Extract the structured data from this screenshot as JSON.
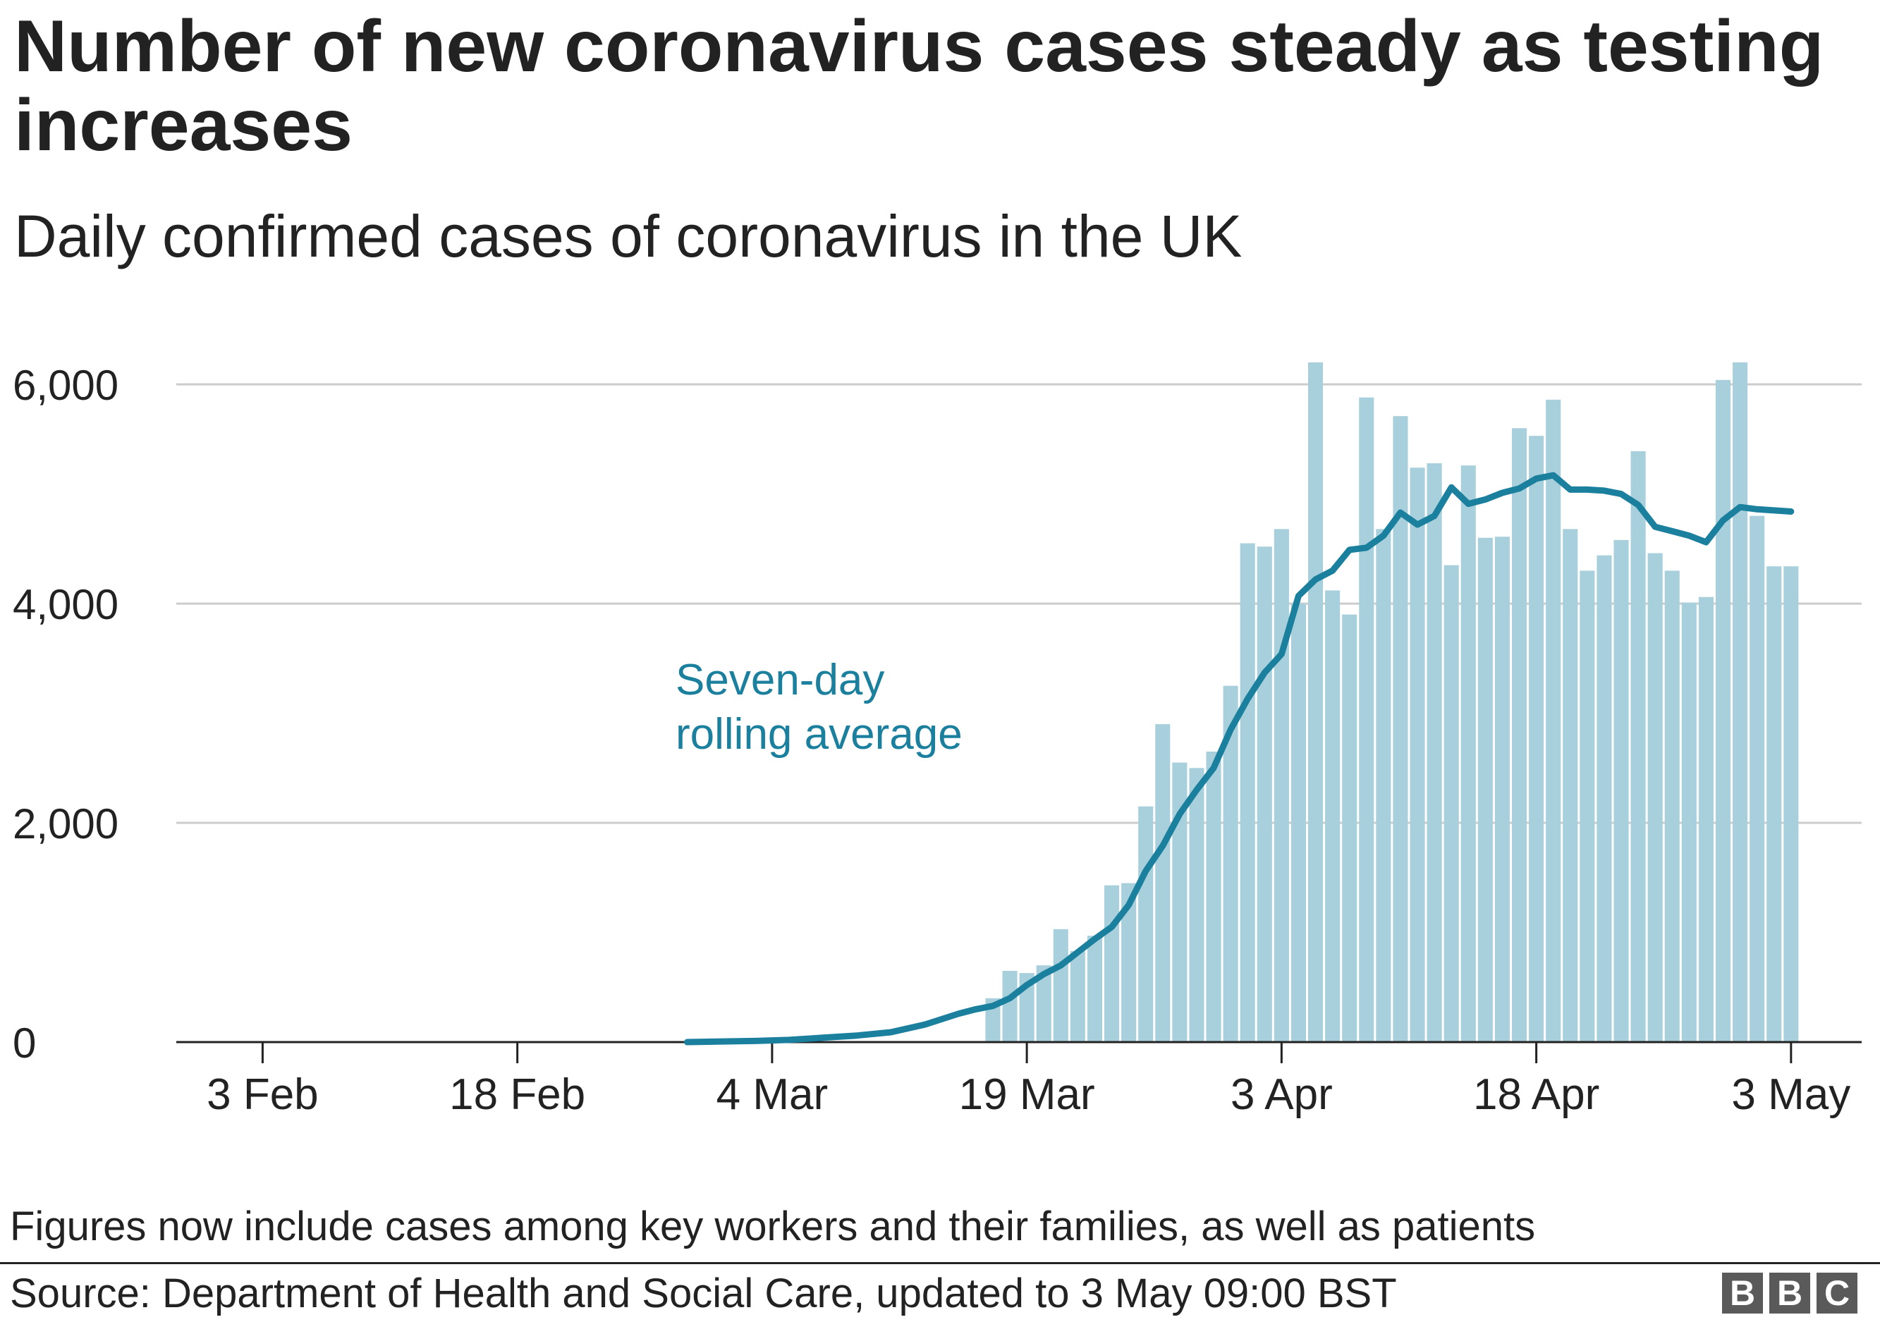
{
  "header": {
    "title": "Number of new coronavirus cases steady as testing increases",
    "subtitle": "Daily confirmed cases of coronavirus in the UK"
  },
  "footer": {
    "note": "Figures now include cases among key workers and their families, as well as patients",
    "source": "Source: Department of Health and Social Care, updated to 3 May 09:00 BST",
    "logo_letters": [
      "B",
      "B",
      "C"
    ]
  },
  "colors": {
    "bar": "#a8d0dc",
    "line": "#1b7f9e",
    "grid": "#cccccc",
    "axis": "#222222",
    "text": "#222222",
    "annotation": "#1b7f9e",
    "logo_bg": "#5a5a5a"
  },
  "chart_data": {
    "type": "bar",
    "x_axis_type": "date",
    "xlim": [
      "2020-01-29",
      "2020-05-05"
    ],
    "ylim": [
      0,
      6200
    ],
    "grid": true,
    "y_ticks": [
      0,
      2000,
      4000,
      6000
    ],
    "y_tick_labels": [
      "0",
      "2,000",
      "4,000",
      "6,000"
    ],
    "x_ticks": [
      "2020-02-03",
      "2020-02-18",
      "2020-03-04",
      "2020-03-19",
      "2020-04-03",
      "2020-04-18",
      "2020-05-03"
    ],
    "x_tick_labels": [
      "3 Feb",
      "18 Feb",
      "4 Mar",
      "19 Mar",
      "3 Apr",
      "18 Apr",
      "3 May"
    ],
    "annotation": {
      "lines": [
        "Seven-day",
        "rolling average"
      ],
      "color": "#1b7f9e"
    },
    "series": [
      {
        "type": "bar",
        "x": [
          "2020-03-17",
          "2020-03-18",
          "2020-03-19",
          "2020-03-20",
          "2020-03-21",
          "2020-03-22",
          "2020-03-23",
          "2020-03-24",
          "2020-03-25",
          "2020-03-26",
          "2020-03-27",
          "2020-03-28",
          "2020-03-29",
          "2020-03-30",
          "2020-03-31",
          "2020-04-01",
          "2020-04-02",
          "2020-04-03",
          "2020-04-04",
          "2020-04-05",
          "2020-04-06",
          "2020-04-07",
          "2020-04-08",
          "2020-04-09",
          "2020-04-10",
          "2020-04-11",
          "2020-04-12",
          "2020-04-13",
          "2020-04-14",
          "2020-04-15",
          "2020-04-16",
          "2020-04-17",
          "2020-04-18",
          "2020-04-19",
          "2020-04-20",
          "2020-04-21",
          "2020-04-22",
          "2020-04-23",
          "2020-04-24",
          "2020-04-25",
          "2020-04-26",
          "2020-04-27",
          "2020-04-28",
          "2020-04-29",
          "2020-04-30",
          "2020-05-01",
          "2020-05-02",
          "2020-05-03"
        ],
        "values": [
          400,
          650,
          630,
          700,
          1030,
          830,
          970,
          1430,
          1450,
          2150,
          2900,
          2550,
          2500,
          2650,
          3250,
          4550,
          4520,
          4680,
          4000,
          6200,
          4120,
          3900,
          5880,
          4680,
          5710,
          5240,
          5280,
          4350,
          5260,
          4600,
          4610,
          5600,
          5530,
          5860,
          4680,
          4300,
          4440,
          4580,
          5390,
          4460,
          4300,
          4010,
          4060,
          6040,
          6200,
          4800,
          4340,
          4340
        ]
      },
      {
        "type": "line",
        "x": [
          "2020-02-28",
          "2020-03-03",
          "2020-03-05",
          "2020-03-07",
          "2020-03-09",
          "2020-03-11",
          "2020-03-13",
          "2020-03-15",
          "2020-03-16",
          "2020-03-17",
          "2020-03-18",
          "2020-03-19",
          "2020-03-20",
          "2020-03-21",
          "2020-03-22",
          "2020-03-23",
          "2020-03-24",
          "2020-03-25",
          "2020-03-26",
          "2020-03-27",
          "2020-03-28",
          "2020-03-29",
          "2020-03-30",
          "2020-03-31",
          "2020-04-01",
          "2020-04-02",
          "2020-04-03",
          "2020-04-04",
          "2020-04-05",
          "2020-04-06",
          "2020-04-07",
          "2020-04-08",
          "2020-04-09",
          "2020-04-10",
          "2020-04-11",
          "2020-04-12",
          "2020-04-13",
          "2020-04-14",
          "2020-04-15",
          "2020-04-16",
          "2020-04-17",
          "2020-04-18",
          "2020-04-19",
          "2020-04-20",
          "2020-04-21",
          "2020-04-22",
          "2020-04-23",
          "2020-04-24",
          "2020-04-25",
          "2020-04-26",
          "2020-04-27",
          "2020-04-28",
          "2020-04-29",
          "2020-04-30",
          "2020-05-01",
          "2020-05-02",
          "2020-05-03"
        ],
        "values": [
          0,
          10,
          20,
          40,
          60,
          90,
          160,
          260,
          300,
          330,
          400,
          520,
          620,
          700,
          820,
          940,
          1050,
          1250,
          1560,
          1790,
          2080,
          2300,
          2500,
          2850,
          3130,
          3370,
          3540,
          4070,
          4220,
          4300,
          4490,
          4510,
          4620,
          4830,
          4720,
          4800,
          5060,
          4910,
          4950,
          5010,
          5050,
          5140,
          5170,
          5040,
          5040,
          5030,
          5000,
          4900,
          4700,
          4660,
          4620,
          4560,
          4760,
          4880,
          4860,
          4850,
          4840
        ]
      }
    ]
  }
}
